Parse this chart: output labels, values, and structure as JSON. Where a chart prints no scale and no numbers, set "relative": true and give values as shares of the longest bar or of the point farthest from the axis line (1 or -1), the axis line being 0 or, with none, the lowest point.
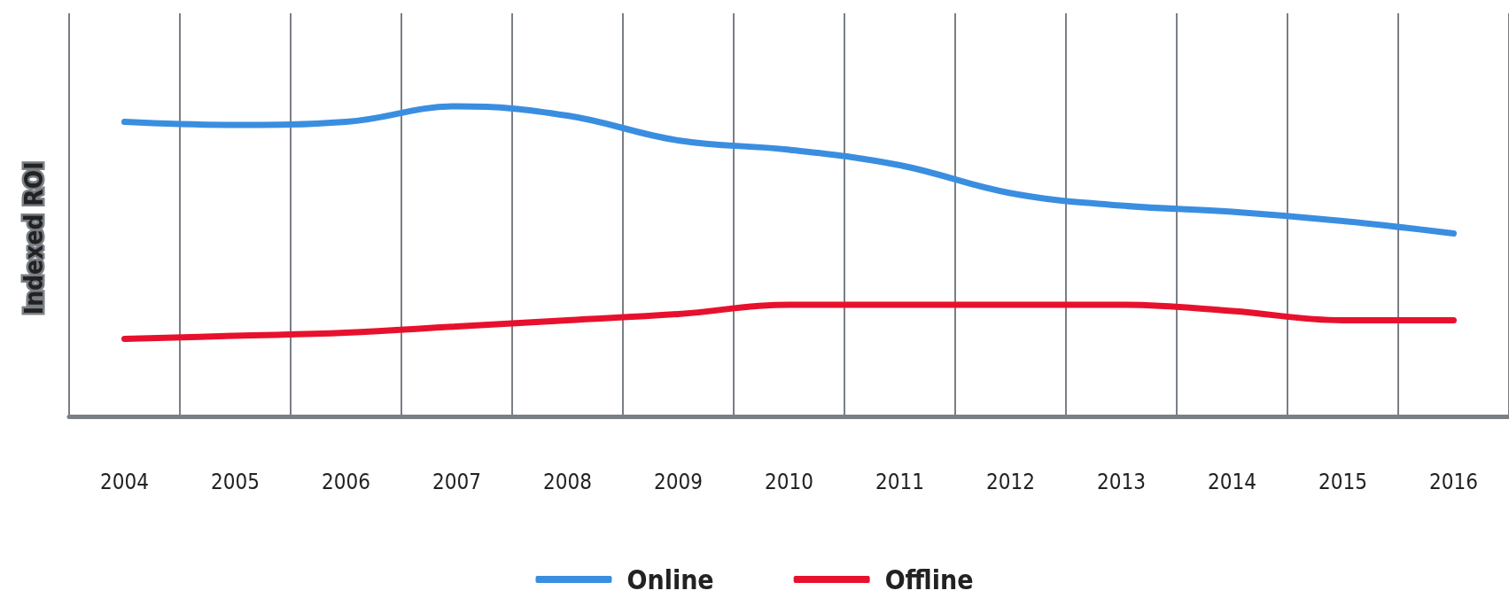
{
  "chart_data": {
    "type": "line",
    "relative": true,
    "ylabel": "Indexed ROI",
    "categories": [
      "2004",
      "2005",
      "2006",
      "2007",
      "2008",
      "2009",
      "2010",
      "2011",
      "2012",
      "2013",
      "2014",
      "2015",
      "2016"
    ],
    "series": [
      {
        "name": "Online",
        "color": "#3a8ee0",
        "values": [
          0.95,
          0.94,
          0.95,
          1,
          0.97,
          0.89,
          0.86,
          0.81,
          0.72,
          0.68,
          0.66,
          0.63,
          0.59
        ]
      },
      {
        "name": "Offline",
        "color": "#e8112d",
        "values": [
          0.25,
          0.26,
          0.27,
          0.29,
          0.31,
          0.33,
          0.36,
          0.36,
          0.36,
          0.36,
          0.34,
          0.31,
          0.31
        ]
      }
    ],
    "grid": "x",
    "legend": "bottom",
    "marker": "none",
    "line_style": "solid"
  }
}
